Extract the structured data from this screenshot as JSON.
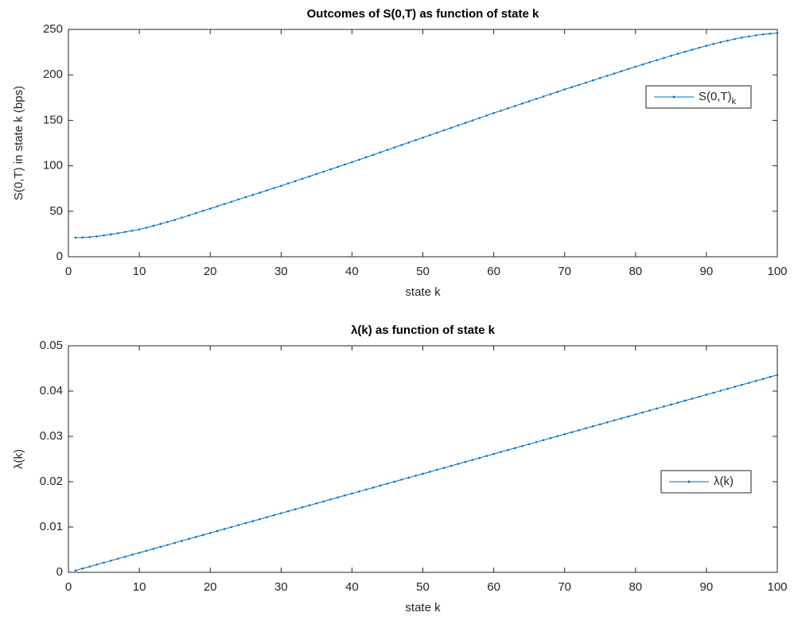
{
  "chart_data": [
    {
      "type": "line",
      "title": "Outcomes of S(0,T) as function of state k",
      "xlabel": "state k",
      "ylabel": "S(0,T) in state k (bps)",
      "x": [
        1,
        2,
        3,
        4,
        5,
        6,
        7,
        8,
        9,
        10,
        11,
        12,
        13,
        14,
        15,
        16,
        17,
        18,
        19,
        20,
        21,
        22,
        23,
        24,
        25,
        26,
        27,
        28,
        29,
        30,
        31,
        32,
        33,
        34,
        35,
        36,
        37,
        38,
        39,
        40,
        41,
        42,
        43,
        44,
        45,
        46,
        47,
        48,
        49,
        50,
        51,
        52,
        53,
        54,
        55,
        56,
        57,
        58,
        59,
        60,
        61,
        62,
        63,
        64,
        65,
        66,
        67,
        68,
        69,
        70,
        71,
        72,
        73,
        74,
        75,
        76,
        77,
        78,
        79,
        80,
        81,
        82,
        83,
        84,
        85,
        86,
        87,
        88,
        89,
        90,
        91,
        92,
        93,
        94,
        95,
        96,
        97,
        98,
        99,
        100
      ],
      "series": [
        {
          "name": "S(0,T)_k",
          "color": "#0072bd",
          "values": [
            21,
            21.2,
            21.6,
            22.4,
            23.5,
            24.6,
            25.9,
            27.3,
            28.6,
            30,
            32,
            34,
            36.2,
            38.3,
            40.5,
            43,
            45.5,
            48,
            50.5,
            53,
            55.5,
            58,
            60.5,
            63,
            65.5,
            68,
            70.5,
            73,
            75.5,
            78,
            80.6,
            83.2,
            85.8,
            88.4,
            91,
            93.6,
            96.2,
            98.8,
            101.4,
            104,
            106.7,
            109.4,
            112.1,
            114.8,
            117.5,
            120.2,
            122.9,
            125.6,
            128.3,
            131,
            133.7,
            136.4,
            139.1,
            141.8,
            144.5,
            147.2,
            149.9,
            152.6,
            155.3,
            158,
            160.6,
            163.2,
            165.8,
            168.4,
            171,
            173.6,
            176.2,
            178.8,
            181.4,
            184,
            186.5,
            189,
            191.5,
            194,
            196.5,
            199,
            201.5,
            204,
            206.5,
            209,
            211.4,
            213.8,
            216.2,
            218.6,
            221,
            223.3,
            225.5,
            227.7,
            229.9,
            232,
            234,
            235.9,
            237.7,
            239.4,
            241,
            242.3,
            243.5,
            244.5,
            245.3,
            246
          ]
        }
      ],
      "xlim": [
        0,
        100
      ],
      "xticks": [
        0,
        10,
        20,
        30,
        40,
        50,
        60,
        70,
        80,
        90,
        100
      ],
      "ylim": [
        0,
        250
      ],
      "yticks": [
        0,
        50,
        100,
        150,
        200,
        250
      ],
      "grid": false
    },
    {
      "type": "line",
      "title": "λ(k) as function of state k",
      "xlabel": "state k",
      "ylabel": "λ(k)",
      "x": [
        1,
        2,
        3,
        4,
        5,
        6,
        7,
        8,
        9,
        10,
        11,
        12,
        13,
        14,
        15,
        16,
        17,
        18,
        19,
        20,
        21,
        22,
        23,
        24,
        25,
        26,
        27,
        28,
        29,
        30,
        31,
        32,
        33,
        34,
        35,
        36,
        37,
        38,
        39,
        40,
        41,
        42,
        43,
        44,
        45,
        46,
        47,
        48,
        49,
        50,
        51,
        52,
        53,
        54,
        55,
        56,
        57,
        58,
        59,
        60,
        61,
        62,
        63,
        64,
        65,
        66,
        67,
        68,
        69,
        70,
        71,
        72,
        73,
        74,
        75,
        76,
        77,
        78,
        79,
        80,
        81,
        82,
        83,
        84,
        85,
        86,
        87,
        88,
        89,
        90,
        91,
        92,
        93,
        94,
        95,
        96,
        97,
        98,
        99,
        100
      ],
      "series": [
        {
          "name": "λ(k)",
          "color": "#0072bd",
          "values": [
            0.0004,
            0.00084,
            0.00127,
            0.00171,
            0.00214,
            0.00258,
            0.00302,
            0.00345,
            0.00389,
            0.00432,
            0.00476,
            0.0052,
            0.00563,
            0.00607,
            0.0065,
            0.00694,
            0.00738,
            0.00781,
            0.00825,
            0.00868,
            0.00912,
            0.00956,
            0.00999,
            0.01043,
            0.01086,
            0.0113,
            0.01174,
            0.01217,
            0.01261,
            0.01304,
            0.01348,
            0.01392,
            0.01435,
            0.01479,
            0.01522,
            0.01566,
            0.0161,
            0.01653,
            0.01697,
            0.0174,
            0.01784,
            0.01828,
            0.01871,
            0.01915,
            0.01958,
            0.02002,
            0.02046,
            0.02089,
            0.02133,
            0.02176,
            0.0222,
            0.02264,
            0.02307,
            0.02351,
            0.02394,
            0.02438,
            0.02482,
            0.02525,
            0.02569,
            0.02612,
            0.02656,
            0.027,
            0.02743,
            0.02787,
            0.0283,
            0.02874,
            0.02918,
            0.02961,
            0.03005,
            0.03048,
            0.03092,
            0.03136,
            0.03179,
            0.03223,
            0.03266,
            0.0331,
            0.03354,
            0.03397,
            0.03441,
            0.03484,
            0.03528,
            0.03572,
            0.03615,
            0.03659,
            0.03702,
            0.03746,
            0.0379,
            0.03833,
            0.03877,
            0.0392,
            0.03964,
            0.04008,
            0.04051,
            0.04095,
            0.04138,
            0.04182,
            0.04226,
            0.04269,
            0.04313,
            0.04356
          ]
        }
      ],
      "xlim": [
        0,
        100
      ],
      "xticks": [
        0,
        10,
        20,
        30,
        40,
        50,
        60,
        70,
        80,
        90,
        100
      ],
      "ylim": [
        0,
        0.05
      ],
      "yticks": [
        0,
        0.01,
        0.02,
        0.03,
        0.04,
        0.05
      ],
      "grid": false
    }
  ]
}
